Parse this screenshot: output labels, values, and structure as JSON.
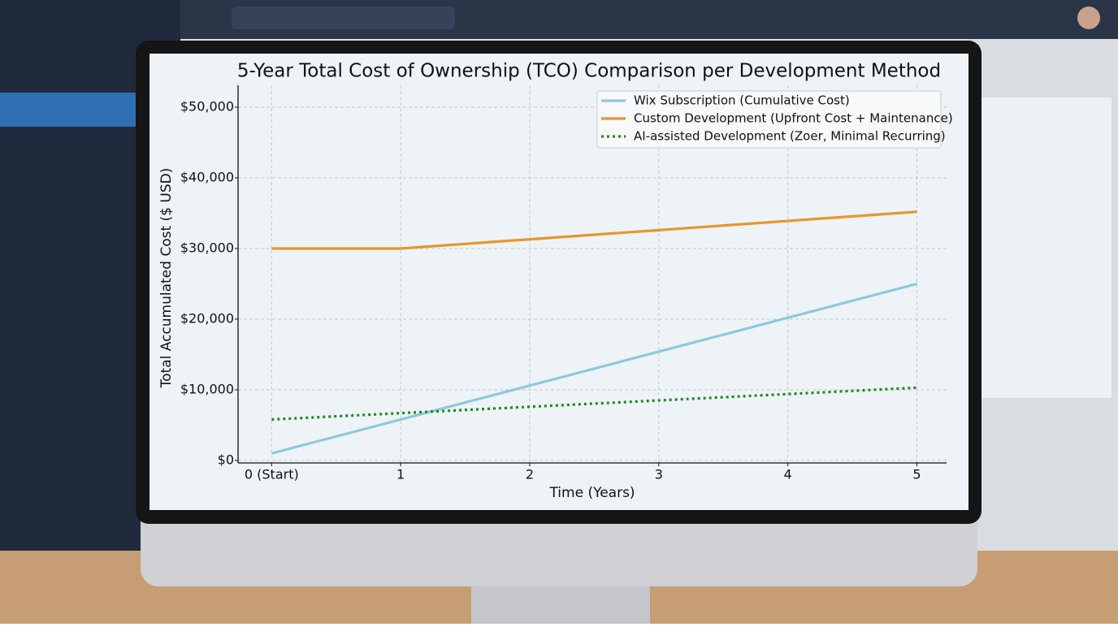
{
  "chart_data": {
    "type": "line",
    "title": "5-Year Total Cost of Ownership (TCO) Comparison per Development Method",
    "x_label": "Time (Years)",
    "y_label": "Total Accumulated Cost ($ USD)",
    "x": [
      0,
      1,
      2,
      3,
      4,
      5
    ],
    "xlim": [
      -0.26,
      5.23
    ],
    "xticks": [
      {
        "value": 0,
        "label": "0 (Start)"
      },
      1,
      2,
      3,
      4,
      5
    ],
    "ylim": [
      -350,
      53100
    ],
    "yticks": [
      {
        "value": 0,
        "label": "$0"
      },
      {
        "value": 10000,
        "label": "$10,000"
      },
      {
        "value": 20000,
        "label": "$20,000"
      },
      {
        "value": 30000,
        "label": "$30,000"
      },
      {
        "value": 40000,
        "label": "$40,000"
      },
      {
        "value": 50000,
        "label": "$50,000"
      }
    ],
    "grid": true,
    "legend": "upper right",
    "series": [
      {
        "name": "Wix Subscription (Cumulative Cost)",
        "color": "#8ec8e0",
        "linestyle": "solid",
        "values": [
          1000,
          5800,
          10600,
          15400,
          20200,
          25000
        ]
      },
      {
        "name": "Custom Development (Upfront Cost + Maintenance)",
        "color": "#e8962a",
        "linestyle": "solid",
        "values": [
          30000,
          30000,
          31300,
          32600,
          33900,
          35200
        ]
      },
      {
        "name": "AI-assisted Development (Zoer, Minimal Recurring)",
        "color": "#1e8a1e",
        "linestyle": "dotted",
        "values": [
          5800,
          6700,
          7600,
          8500,
          9400,
          10300
        ]
      }
    ]
  }
}
